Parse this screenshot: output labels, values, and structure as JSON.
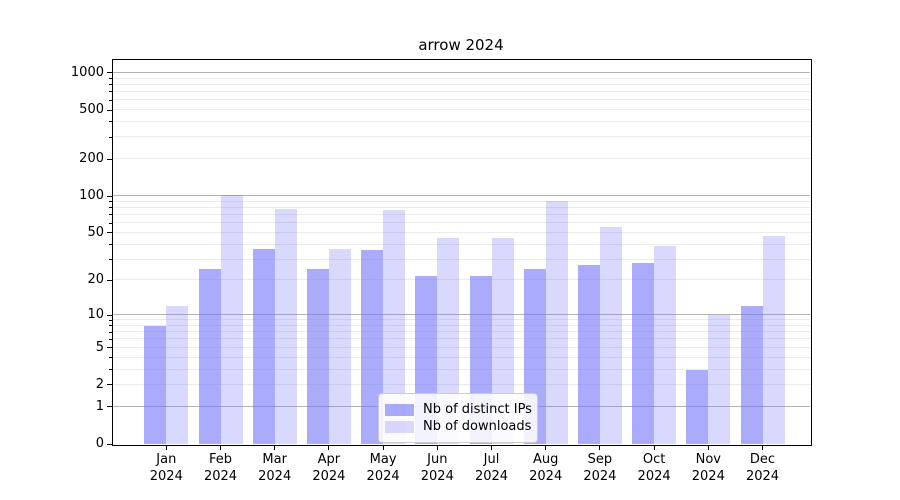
{
  "chart_data": {
    "type": "bar",
    "title": "arrow 2024",
    "x_year": "2024",
    "categories": [
      "Jan",
      "Feb",
      "Mar",
      "Apr",
      "May",
      "Jun",
      "Jul",
      "Aug",
      "Sep",
      "Oct",
      "Nov",
      "Dec"
    ],
    "series": [
      {
        "name": "Nb of distinct IPs",
        "color": "rgba(120,120,250,0.62)",
        "values": [
          8,
          25,
          37,
          25,
          36,
          22,
          22,
          25,
          27,
          28,
          3,
          12
        ]
      },
      {
        "name": "Nb of downloads",
        "color": "rgba(120,120,250,0.28)",
        "values": [
          12,
          102,
          78,
          37,
          77,
          45,
          45,
          92,
          56,
          39,
          10,
          47
        ]
      }
    ],
    "yticks": [
      0,
      1,
      2,
      5,
      10,
      20,
      50,
      100,
      200,
      500,
      1000
    ],
    "xlabel": "",
    "ylabel": "",
    "scale": "log1p",
    "ylim": [
      0,
      1300
    ],
    "grid": "major and minor horizontal gridlines",
    "legend_position": "lower center",
    "colors": {
      "bar_dark_on_white": "#aaaaf5",
      "bar_light_on_white": "#dadaf9",
      "major_grid": "#b2b2b2",
      "minor_grid": "#ebebeb",
      "spine": "#000000",
      "background": "#ffffff",
      "text": "#000000"
    }
  }
}
